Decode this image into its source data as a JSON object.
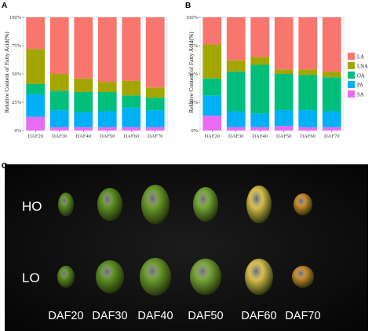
{
  "panel_labels": {
    "a": "A",
    "b": "B",
    "c": "C"
  },
  "legend": [
    {
      "label": "LA",
      "color": "#F8766D"
    },
    {
      "label": "LNA",
      "color": "#A3A500"
    },
    {
      "label": "OA",
      "color": "#00BF7D"
    },
    {
      "label": "PA",
      "color": "#00B0F6"
    },
    {
      "label": "SA",
      "color": "#E76BF3"
    }
  ],
  "chart_data": [
    {
      "type": "bar",
      "stacked": true,
      "panel": "A",
      "ylabel": "Relative Content of Fatty Acid(%)",
      "ylim": [
        0,
        100
      ],
      "yticks": [
        "0%",
        "25%",
        "50%",
        "75%",
        "100%"
      ],
      "categories": [
        "DAF20",
        "DAF30",
        "DAF40",
        "DAF50",
        "DAF60",
        "DAF70"
      ],
      "stack_order_bottom_to_top": [
        "SA",
        "PA",
        "OA",
        "LNA",
        "LA"
      ],
      "series": [
        {
          "name": "SA",
          "values": [
            12,
            3,
            3,
            3,
            3,
            3
          ]
        },
        {
          "name": "PA",
          "values": [
            20,
            15,
            13,
            14,
            17,
            15
          ]
        },
        {
          "name": "OA",
          "values": [
            9,
            17,
            18,
            17,
            11,
            11
          ]
        },
        {
          "name": "LNA",
          "values": [
            31,
            15,
            12,
            9,
            13,
            9
          ]
        },
        {
          "name": "LA",
          "values": [
            28,
            50,
            54,
            57,
            56,
            62
          ]
        }
      ]
    },
    {
      "type": "bar",
      "stacked": true,
      "panel": "B",
      "ylabel": "Relative Content of Fatty Acid(%)",
      "ylim": [
        0,
        100
      ],
      "yticks": [
        "0%",
        "25%",
        "50%",
        "75%",
        "100%"
      ],
      "categories": [
        "DAF20",
        "DAF30",
        "DAF40",
        "DAF50",
        "DAF60",
        "DAF70"
      ],
      "stack_order_bottom_to_top": [
        "SA",
        "PA",
        "OA",
        "LNA",
        "LA"
      ],
      "series": [
        {
          "name": "SA",
          "values": [
            13,
            3,
            3,
            4,
            3,
            3
          ]
        },
        {
          "name": "PA",
          "values": [
            18,
            14,
            12,
            14,
            15,
            14
          ]
        },
        {
          "name": "OA",
          "values": [
            15,
            35,
            43,
            32,
            31,
            30
          ]
        },
        {
          "name": "LNA",
          "values": [
            30,
            10,
            7,
            4,
            5,
            5
          ]
        },
        {
          "name": "LA",
          "values": [
            24,
            38,
            35,
            46,
            46,
            48
          ]
        }
      ]
    }
  ],
  "photo": {
    "row_labels": [
      "HO",
      "LO"
    ],
    "stage_labels": [
      "DAF20",
      "DAF30",
      "DAF40",
      "DAF50",
      "DAF60",
      "DAF70"
    ],
    "seed_colors": [
      "#5a8a22",
      "#5f8f24",
      "#6a9a2a",
      "#76a534",
      "#d9bf4c",
      "#c98a2c"
    ]
  }
}
